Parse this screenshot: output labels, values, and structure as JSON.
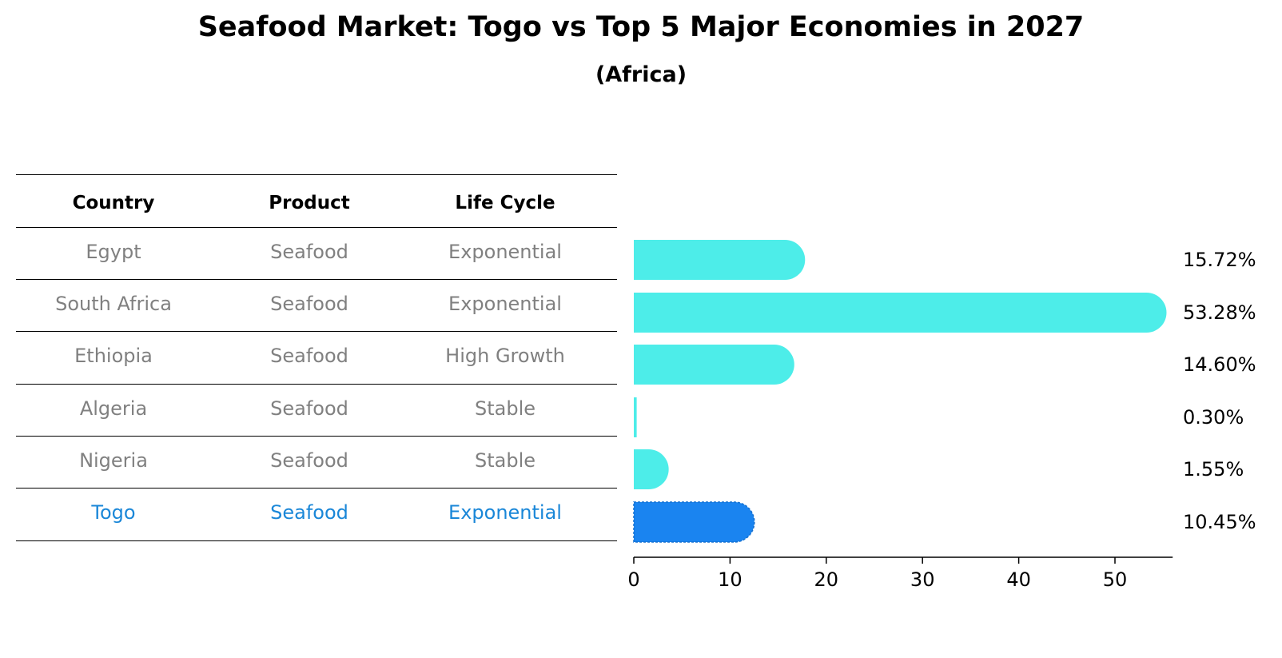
{
  "title": "Seafood Market: Togo vs Top 5 Major Economies in 2027",
  "subtitle": "(Africa)",
  "table": {
    "headers": [
      "Country",
      "Product",
      "Life Cycle"
    ],
    "rows": [
      [
        "Egypt",
        "Seafood",
        "Exponential"
      ],
      [
        "South Africa",
        "Seafood",
        "Exponential"
      ],
      [
        "Ethiopia",
        "Seafood",
        "High Growth"
      ],
      [
        "Algeria",
        "Seafood",
        "Stable"
      ],
      [
        "Nigeria",
        "Seafood",
        "Stable"
      ],
      [
        "Togo",
        "Seafood",
        "Exponential"
      ]
    ],
    "highlight_row": 5
  },
  "colors": {
    "bar": "#4dede9",
    "highlight_bar": "#1a84f0",
    "highlight_text": "#1a87d8",
    "muted_text": "#808080"
  },
  "chart_data": {
    "type": "bar",
    "orientation": "horizontal",
    "categories": [
      "Egypt",
      "South Africa",
      "Ethiopia",
      "Algeria",
      "Nigeria",
      "Togo"
    ],
    "values": [
      15.72,
      53.28,
      14.6,
      0.3,
      1.55,
      10.45
    ],
    "value_labels": [
      "15.72%",
      "53.28%",
      "14.60%",
      "0.30%",
      "1.55%",
      "10.45%"
    ],
    "highlight": "Togo",
    "xlim": [
      0,
      56
    ],
    "xticks": [
      0,
      10,
      20,
      30,
      40,
      50
    ],
    "xtick_labels": [
      "0",
      "10",
      "20",
      "30",
      "40",
      "50"
    ],
    "grid": false
  }
}
